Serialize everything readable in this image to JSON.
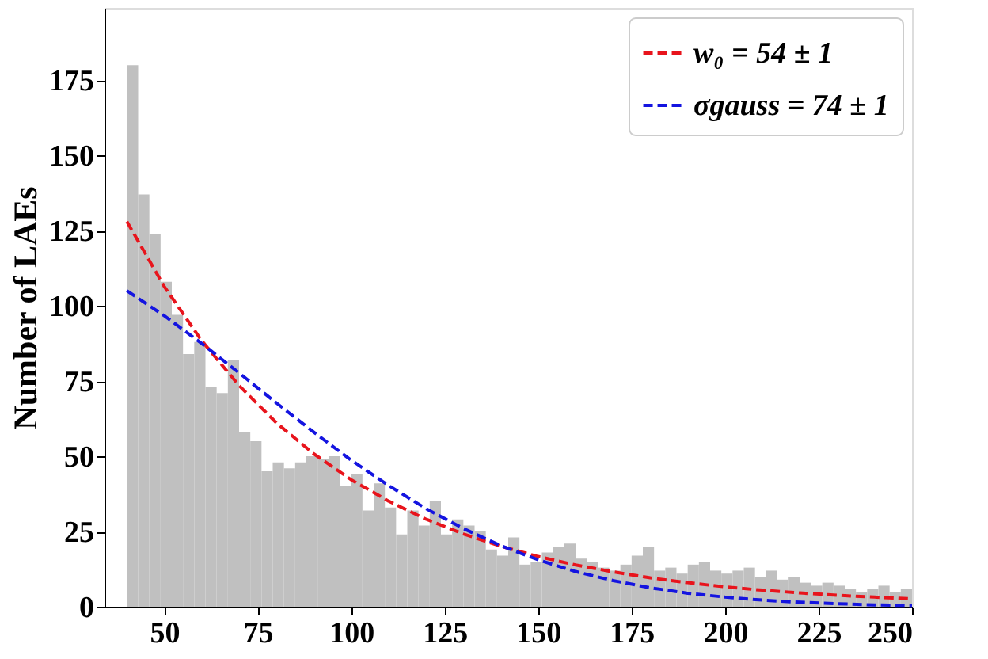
{
  "chart_data": {
    "type": "histogram",
    "ylabel": "Number of LAEs",
    "color": "#c0c0c0",
    "bins": [
      40,
      43,
      46,
      49,
      52,
      55,
      58,
      61,
      64,
      67,
      70,
      73,
      76,
      79,
      82,
      85,
      88,
      91,
      94,
      97,
      100,
      103,
      106,
      109,
      112,
      115,
      118,
      121,
      124,
      127,
      130,
      133,
      136,
      139,
      142,
      145,
      148,
      151,
      154,
      157,
      160,
      163,
      166,
      169,
      172,
      175,
      178,
      181,
      184,
      187,
      190,
      193,
      196,
      199,
      202,
      205,
      208,
      211,
      214,
      217,
      220,
      223,
      226,
      229,
      232,
      235,
      238,
      241,
      244,
      247,
      250
    ],
    "values": [
      180,
      137,
      124,
      108,
      97,
      84,
      88,
      73,
      71,
      82,
      58,
      55,
      45,
      48,
      46,
      48,
      50,
      49,
      50,
      40,
      44,
      32,
      41,
      33,
      24,
      32,
      27,
      35,
      24,
      29,
      27,
      25,
      19,
      17,
      23,
      14,
      15,
      18,
      20,
      21,
      16,
      15,
      13,
      12,
      14,
      17,
      20,
      12,
      13,
      11,
      14,
      15,
      12,
      11,
      12,
      13,
      10,
      12,
      9,
      10,
      8,
      7,
      8,
      7,
      6,
      5,
      6,
      7,
      5,
      6
    ],
    "series": [
      {
        "type": "line",
        "name": "w₀ = 54 ± 1",
        "color": "#e8141c",
        "line_style": "dashed",
        "marker": "none",
        "x": [
          40,
          50,
          60,
          70,
          80,
          90,
          100,
          110,
          120,
          130,
          140,
          150,
          160,
          170,
          180,
          190,
          200,
          210,
          220,
          230,
          240,
          250
        ],
        "values": [
          128,
          106.4,
          88.4,
          73.5,
          61.1,
          50.8,
          42.2,
          35.1,
          29.1,
          24.2,
          20.1,
          16.7,
          13.9,
          11.6,
          9.6,
          8.0,
          6.6,
          5.5,
          4.6,
          3.8,
          3.2,
          2.6
        ]
      },
      {
        "type": "line",
        "name": "σgauss = 74 ± 1",
        "color": "#1414e0",
        "line_style": "dashed",
        "marker": "none",
        "x": [
          40,
          50,
          60,
          70,
          80,
          90,
          100,
          110,
          120,
          130,
          140,
          150,
          160,
          170,
          180,
          190,
          200,
          210,
          220,
          230,
          240,
          250
        ],
        "values": [
          105,
          96.7,
          87.5,
          77.7,
          67.7,
          58.0,
          48.7,
          40.3,
          32.6,
          26.0,
          20.3,
          15.6,
          11.7,
          8.7,
          6.3,
          4.5,
          3.2,
          2.2,
          1.5,
          1.0,
          0.6,
          0.4
        ]
      }
    ],
    "xlim": [
      34,
      250
    ],
    "xticks": [
      50,
      75,
      100,
      125,
      150,
      175,
      200,
      225,
      250
    ],
    "ylim": [
      0,
      199
    ],
    "yticks": [
      0,
      25,
      50,
      75,
      100,
      125,
      150,
      175
    ],
    "grid": false,
    "legend": "top right"
  }
}
